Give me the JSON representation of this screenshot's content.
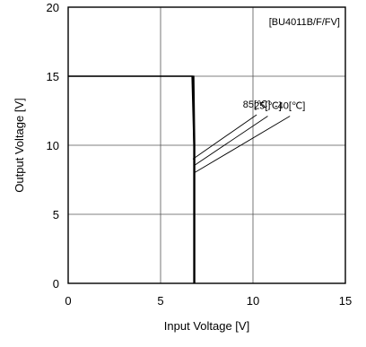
{
  "chart_data": {
    "type": "line",
    "title": "",
    "xlabel": "Input Voltage [V]",
    "ylabel": "Output Voltage [V]",
    "xlim": [
      0,
      15
    ],
    "ylim": [
      0,
      20
    ],
    "xticks": [
      0,
      5,
      10,
      15
    ],
    "yticks": [
      0,
      5,
      10,
      15,
      20
    ],
    "grid": true,
    "annotation_box": "[BU4011B/F/FV]",
    "series": [
      {
        "name": "85[℃]",
        "x": [
          0,
          6.7,
          6.8,
          6.8
        ],
        "y": [
          15,
          15,
          10,
          0
        ]
      },
      {
        "name": "25[℃]",
        "x": [
          0,
          6.75,
          6.8,
          6.8
        ],
        "y": [
          15,
          15,
          10,
          0
        ]
      },
      {
        "name": "-40[℃]",
        "x": [
          0,
          6.8,
          6.85,
          6.85
        ],
        "y": [
          15,
          15,
          10,
          0
        ]
      }
    ],
    "callouts": [
      {
        "label": "85[℃]",
        "target": [
          6.75,
          9.0
        ],
        "text_at": [
          10.2,
          12.6
        ]
      },
      {
        "label": "25[℃]",
        "target": [
          6.78,
          8.5
        ],
        "text_at": [
          10.8,
          12.5
        ]
      },
      {
        "label": "-40[℃]",
        "target": [
          6.82,
          8.0
        ],
        "text_at": [
          12.0,
          12.5
        ]
      }
    ]
  }
}
